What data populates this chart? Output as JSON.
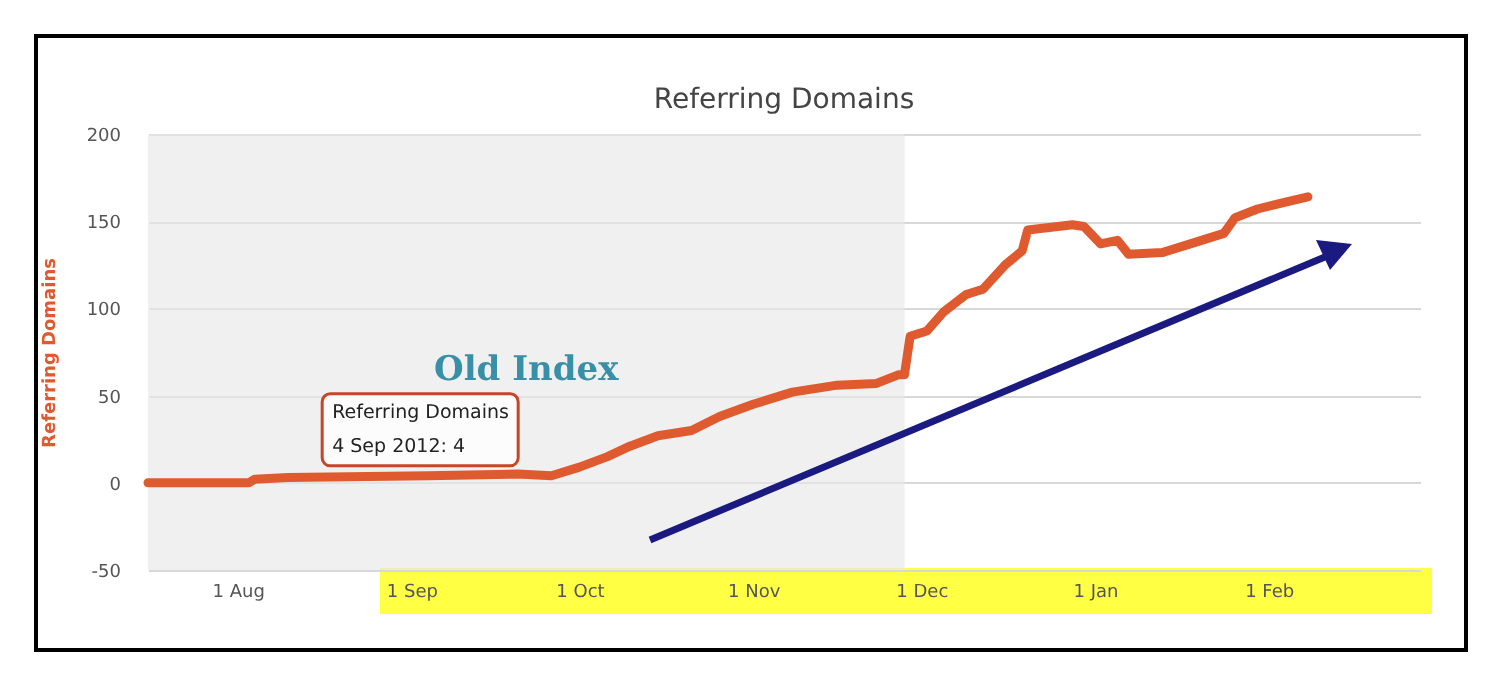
{
  "chart_data": {
    "type": "line",
    "title": "Referring Domains",
    "ylabel": "Referring Domains",
    "x": [
      "2012-07-16",
      "2012-08-03",
      "2012-08-04",
      "2012-08-10",
      "2012-09-04",
      "2012-09-20",
      "2012-09-26",
      "2012-10-01",
      "2012-10-06",
      "2012-10-10",
      "2012-10-15",
      "2012-10-21",
      "2012-10-26",
      "2012-11-01",
      "2012-11-08",
      "2012-11-16",
      "2012-11-23",
      "2012-11-27",
      "2012-11-28",
      "2012-11-29",
      "2012-12-02",
      "2012-12-05",
      "2012-12-09",
      "2012-12-12",
      "2012-12-16",
      "2012-12-19",
      "2012-12-20",
      "2012-12-28",
      "2012-12-30",
      "2013-01-02",
      "2013-01-05",
      "2013-01-07",
      "2013-01-13",
      "2013-01-19",
      "2013-01-24",
      "2013-01-26",
      "2013-01-30",
      "2013-02-04",
      "2013-02-08"
    ],
    "series": [
      {
        "color": "#e05a30",
        "values": [
          0,
          0,
          2,
          3,
          4,
          5,
          4,
          9,
          15,
          21,
          27,
          30,
          38,
          45,
          52,
          56,
          57,
          62,
          62,
          84,
          87,
          98,
          108,
          111,
          125,
          133,
          145,
          148,
          147,
          137,
          139,
          131,
          132,
          138,
          143,
          152,
          157,
          161,
          164
        ]
      }
    ],
    "xlim": [
      "2012-07-16",
      "2013-02-28"
    ],
    "xticks": [
      {
        "value": "2012-08-01",
        "label": "1 Aug"
      },
      {
        "value": "2012-09-01",
        "label": "1 Sep"
      },
      {
        "value": "2012-10-01",
        "label": "1 Oct"
      },
      {
        "value": "2012-11-01",
        "label": "1 Nov"
      },
      {
        "value": "2012-12-01",
        "label": "1 Dec"
      },
      {
        "value": "2013-01-01",
        "label": "1 Jan"
      },
      {
        "value": "2013-02-01",
        "label": "1 Feb"
      }
    ],
    "ylim": [
      -50,
      200
    ],
    "yticks": [
      -50,
      0,
      50,
      100,
      150,
      200
    ],
    "grid": "y",
    "marker": "none",
    "line_style": "solid",
    "bands": [
      {
        "axis": "x",
        "from": "2012-07-16",
        "to": "2012-11-28",
        "label": "Old Index",
        "color": "#e8e8e8"
      }
    ],
    "annotations": [
      {
        "text": "Referring Domains\n4 Sep 2012: 4",
        "x": "2012-09-04",
        "y": 4
      }
    ]
  }
}
